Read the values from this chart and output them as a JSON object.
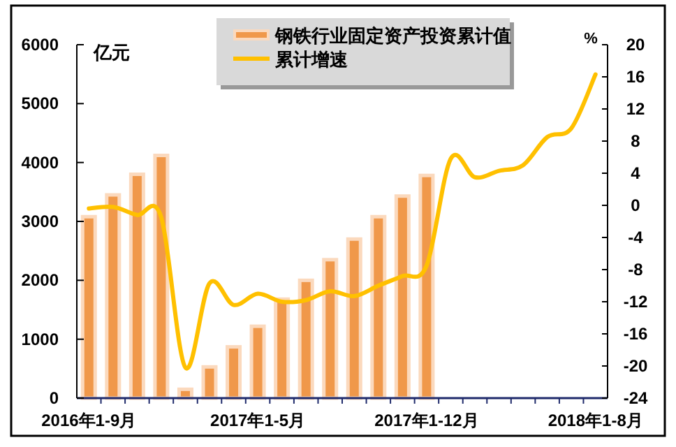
{
  "chart_data": {
    "type": "bar",
    "categories": [
      "2016年1-9月",
      null,
      null,
      null,
      null,
      null,
      null,
      "2017年1-5月",
      null,
      null,
      null,
      null,
      null,
      null,
      "2017年1-12月",
      null,
      null,
      null,
      null,
      null,
      null,
      "2018年1-8月"
    ],
    "series": [
      {
        "name": "钢铁行业固定资产投资累计值",
        "color": "#f0984a",
        "values": [
          3080,
          3450,
          3800,
          4120,
          150,
          530,
          870,
          1220,
          1680,
          2000,
          2350,
          2700,
          3080,
          3430,
          3780,
          null,
          null,
          null,
          null,
          null,
          null,
          null
        ]
      },
      {
        "name": "累计增速",
        "type": "line",
        "axis": "y2",
        "color": "#ffc000",
        "values": [
          -0.4,
          -0.2,
          -1.2,
          -1.5,
          -20.2,
          -9.7,
          -12.4,
          -11.0,
          -12.0,
          -11.8,
          -10.7,
          -11.3,
          -10.0,
          -8.8,
          -7.5,
          5.8,
          3.5,
          4.3,
          5.0,
          8.5,
          9.6,
          16.3
        ]
      }
    ],
    "ylabel": "亿元",
    "y2label": "%",
    "ylim": [
      0,
      6000
    ],
    "yticks": [
      0,
      1000,
      2000,
      3000,
      4000,
      5000,
      6000
    ],
    "y2lim": [
      -24,
      20
    ],
    "y2ticks": [
      -24,
      -20,
      -16,
      -12,
      -8,
      -4,
      0,
      4,
      8,
      12,
      16,
      20
    ],
    "legend": "top",
    "grid": false
  }
}
